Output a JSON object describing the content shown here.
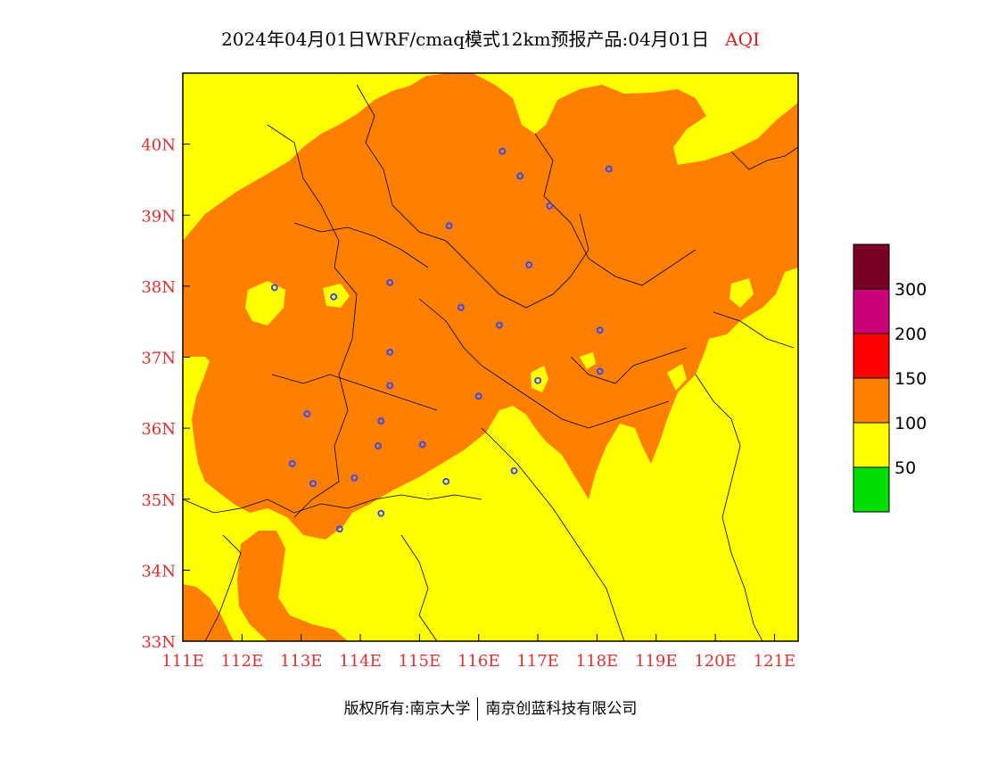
{
  "title": {
    "main": "2024年04月01日WRF/cmaq模式12km预报产品:04月01日",
    "tag": "AQI"
  },
  "footer": {
    "left": "版权所有:南京大学",
    "right": "南京创蓝科技有限公司"
  },
  "map": {
    "lon_range": [
      111,
      121.4
    ],
    "lat_range": [
      33,
      41
    ],
    "x_ticks": [
      {
        "value": 111,
        "label": "111E"
      },
      {
        "value": 112,
        "label": "112E"
      },
      {
        "value": 113,
        "label": "113E"
      },
      {
        "value": 114,
        "label": "114E"
      },
      {
        "value": 115,
        "label": "115E"
      },
      {
        "value": 116,
        "label": "116E"
      },
      {
        "value": 117,
        "label": "117E"
      },
      {
        "value": 118,
        "label": "118E"
      },
      {
        "value": 119,
        "label": "119E"
      },
      {
        "value": 120,
        "label": "120E"
      },
      {
        "value": 121,
        "label": "121E"
      }
    ],
    "y_ticks": [
      {
        "value": 33,
        "label": "33N"
      },
      {
        "value": 34,
        "label": "34N"
      },
      {
        "value": 35,
        "label": "35N"
      },
      {
        "value": 36,
        "label": "36N"
      },
      {
        "value": 37,
        "label": "37N"
      },
      {
        "value": 38,
        "label": "38N"
      },
      {
        "value": 39,
        "label": "39N"
      },
      {
        "value": 40,
        "label": "40N"
      }
    ],
    "colors": {
      "good": "#00dd00",
      "moderate": "#ffff00",
      "unhealthy_sensitive": "#ff7f00",
      "unhealthy": "#ff0000",
      "very_unhealthy": "#cc0077",
      "hazardous": "#7a0025",
      "station": "#3344ff"
    },
    "stations": [
      [
        116.4,
        39.9
      ],
      [
        116.7,
        39.55
      ],
      [
        118.2,
        39.65
      ],
      [
        117.2,
        39.13
      ],
      [
        115.5,
        38.85
      ],
      [
        116.85,
        38.3
      ],
      [
        112.55,
        37.98
      ],
      [
        113.55,
        37.85
      ],
      [
        114.5,
        38.05
      ],
      [
        115.7,
        37.7
      ],
      [
        116.35,
        37.45
      ],
      [
        114.5,
        37.07
      ],
      [
        114.5,
        36.6
      ],
      [
        117.0,
        36.67
      ],
      [
        118.05,
        37.38
      ],
      [
        118.05,
        36.8
      ],
      [
        116.0,
        36.45
      ],
      [
        113.1,
        36.2
      ],
      [
        114.35,
        36.1
      ],
      [
        114.3,
        35.75
      ],
      [
        115.05,
        35.77
      ],
      [
        112.85,
        35.5
      ],
      [
        113.2,
        35.22
      ],
      [
        113.9,
        35.3
      ],
      [
        115.45,
        35.25
      ],
      [
        116.6,
        35.4
      ],
      [
        114.35,
        34.8
      ],
      [
        113.65,
        34.58
      ]
    ]
  },
  "legend": {
    "items": [
      {
        "color": "#7a0025"
      },
      {
        "color": "#cc0077"
      },
      {
        "color": "#ff0000"
      },
      {
        "color": "#ff7f00"
      },
      {
        "color": "#ffff00"
      },
      {
        "color": "#00dd00"
      }
    ],
    "labels": [
      "300",
      "200",
      "150",
      "100",
      "50"
    ]
  }
}
